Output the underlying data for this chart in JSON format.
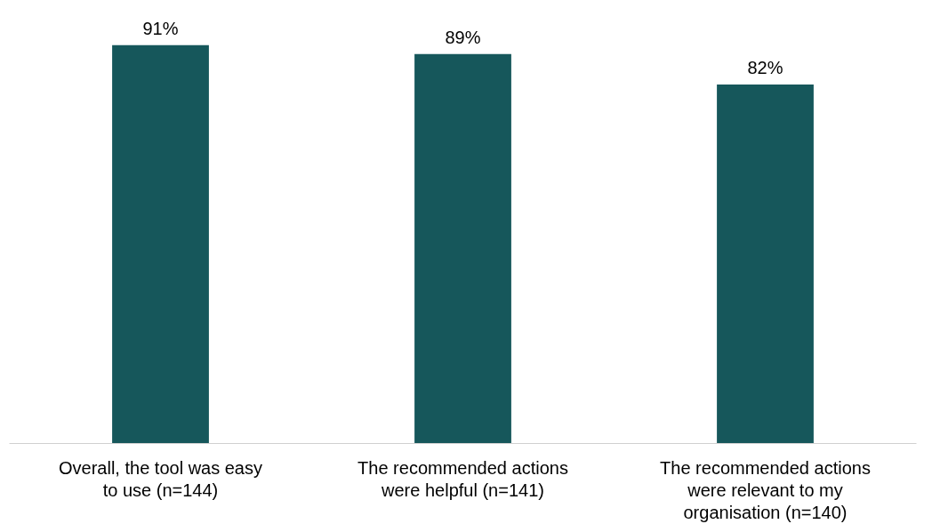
{
  "chart_data": {
    "type": "bar",
    "categories": [
      "Overall, the tool was easy to use (n=144)",
      "The recommended actions were helpful (n=141)",
      "The recommended actions were relevant to my organisation (n=140)"
    ],
    "values": [
      91,
      89,
      82
    ],
    "color": "#16575b",
    "value_labels": [
      "91%",
      "89%",
      "82%"
    ],
    "tick_labels": "x",
    "grid": false
  }
}
